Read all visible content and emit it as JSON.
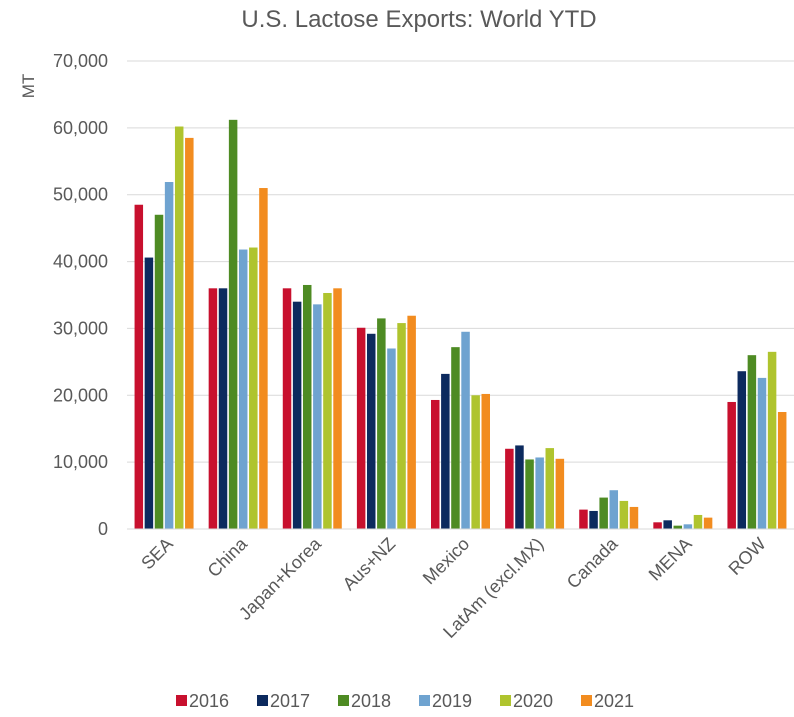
{
  "chart_data": {
    "type": "bar",
    "title": "U.S. Lactose Exports: World YTD",
    "xlabel": "",
    "ylabel": "MT",
    "ylim": [
      0,
      70000
    ],
    "yticks": [
      0,
      10000,
      20000,
      30000,
      40000,
      50000,
      60000,
      70000
    ],
    "ytick_labels": [
      "0",
      "10,000",
      "20,000",
      "30,000",
      "40,000",
      "50,000",
      "60,000",
      "70,000"
    ],
    "grid": true,
    "legend_position": "bottom",
    "categories": [
      "SEA",
      "China",
      "Japan+Korea",
      "Aus+NZ",
      "Mexico",
      "LatAm (excl.MX)",
      "Canada",
      "MENA",
      "ROW"
    ],
    "series": [
      {
        "name": "2016",
        "color": "#C8102E",
        "values": [
          48500,
          36000,
          36000,
          30100,
          19300,
          12000,
          2900,
          1000,
          19000
        ]
      },
      {
        "name": "2017",
        "color": "#0C2A5E",
        "values": [
          40600,
          36000,
          34000,
          29200,
          23200,
          12500,
          2700,
          1300,
          23600
        ]
      },
      {
        "name": "2018",
        "color": "#4E8B23",
        "values": [
          47000,
          61200,
          36500,
          31500,
          27200,
          10400,
          4700,
          500,
          26000
        ]
      },
      {
        "name": "2019",
        "color": "#6FA3D0",
        "values": [
          51900,
          41800,
          33600,
          27000,
          29500,
          10700,
          5800,
          700,
          22600
        ]
      },
      {
        "name": "2020",
        "color": "#AFC42E",
        "values": [
          60200,
          42100,
          35300,
          30800,
          20000,
          12100,
          4200,
          2100,
          26500
        ]
      },
      {
        "name": "2021",
        "color": "#F28C1F",
        "values": [
          58500,
          51000,
          36000,
          31900,
          20200,
          10500,
          3300,
          1700,
          17500
        ]
      }
    ]
  }
}
